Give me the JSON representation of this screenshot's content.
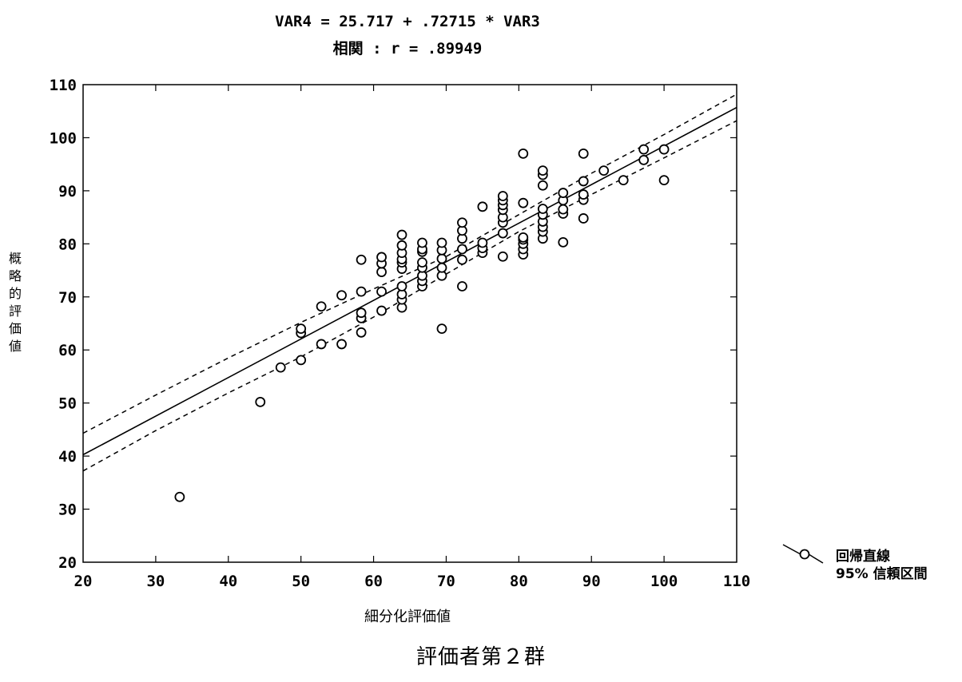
{
  "chart_data": {
    "type": "scatter",
    "title": "VAR4 = 25.717 + .72715 * VAR3",
    "subtitle": "相関 : r = .89949",
    "xlabel": "細分化評価値",
    "ylabel": "概略的評価値",
    "xlim": [
      20,
      110
    ],
    "ylim": [
      20,
      110
    ],
    "xticks": [
      "20",
      "30",
      "40",
      "50",
      "60",
      "70",
      "80",
      "90",
      "100",
      "110"
    ],
    "yticks": [
      "20",
      "30",
      "40",
      "50",
      "60",
      "70",
      "80",
      "90",
      "100",
      "110"
    ],
    "regression": {
      "intercept": 25.717,
      "slope": 0.72715
    },
    "confidence_upper": [
      [
        20,
        44.3
      ],
      [
        30,
        51.5
      ],
      [
        40,
        58.5
      ],
      [
        50,
        65.2
      ],
      [
        60,
        71.5
      ],
      [
        70,
        77.6
      ],
      [
        80,
        85.5
      ],
      [
        90,
        93.3
      ],
      [
        100,
        100.6
      ],
      [
        110,
        108.2
      ]
    ],
    "confidence_lower": [
      [
        20,
        37.2
      ],
      [
        30,
        44.8
      ],
      [
        40,
        51.9
      ],
      [
        50,
        58.7
      ],
      [
        60,
        66.2
      ],
      [
        70,
        74.3
      ],
      [
        80,
        82.3
      ],
      [
        90,
        89.3
      ],
      [
        100,
        96.2
      ],
      [
        110,
        103.2
      ]
    ],
    "points": [
      [
        33.3,
        32.3
      ],
      [
        44.4,
        50.2
      ],
      [
        47.2,
        56.7
      ],
      [
        50,
        58.1
      ],
      [
        50,
        63.2
      ],
      [
        50,
        64
      ],
      [
        52.8,
        61.1
      ],
      [
        52.8,
        68.2
      ],
      [
        55.6,
        61.1
      ],
      [
        55.6,
        70.3
      ],
      [
        58.3,
        63.3
      ],
      [
        58.3,
        66
      ],
      [
        58.3,
        67
      ],
      [
        58.3,
        71
      ],
      [
        58.3,
        77
      ],
      [
        61.1,
        67.4
      ],
      [
        61.1,
        71
      ],
      [
        61.1,
        74.7
      ],
      [
        61.1,
        76.3
      ],
      [
        61.1,
        77.5
      ],
      [
        63.9,
        68
      ],
      [
        63.9,
        69.5
      ],
      [
        63.9,
        70.5
      ],
      [
        63.9,
        72
      ],
      [
        63.9,
        75.3
      ],
      [
        63.9,
        76.5
      ],
      [
        63.9,
        77.1
      ],
      [
        63.9,
        78.3
      ],
      [
        63.9,
        79.7
      ],
      [
        63.9,
        81.7
      ],
      [
        66.7,
        72
      ],
      [
        66.7,
        73
      ],
      [
        66.7,
        74
      ],
      [
        66.7,
        75.5
      ],
      [
        66.7,
        76.5
      ],
      [
        66.7,
        78.5
      ],
      [
        66.7,
        79
      ],
      [
        66.7,
        80.2
      ],
      [
        69.4,
        64
      ],
      [
        69.4,
        74
      ],
      [
        69.4,
        75.5
      ],
      [
        69.4,
        77.2
      ],
      [
        69.4,
        78.8
      ],
      [
        69.4,
        80.2
      ],
      [
        72.2,
        72
      ],
      [
        72.2,
        77
      ],
      [
        72.2,
        79
      ],
      [
        72.2,
        81
      ],
      [
        72.2,
        82.5
      ],
      [
        72.2,
        84
      ],
      [
        75,
        78.3
      ],
      [
        75,
        79.2
      ],
      [
        75,
        80.2
      ],
      [
        75,
        87
      ],
      [
        77.8,
        77.6
      ],
      [
        77.8,
        82
      ],
      [
        77.8,
        84
      ],
      [
        77.8,
        85
      ],
      [
        77.8,
        86.4
      ],
      [
        77.8,
        87.3
      ],
      [
        77.8,
        88.2
      ],
      [
        77.8,
        89
      ],
      [
        80.6,
        78
      ],
      [
        80.6,
        79
      ],
      [
        80.6,
        80
      ],
      [
        80.6,
        80.8
      ],
      [
        80.6,
        81.2
      ],
      [
        80.6,
        87.7
      ],
      [
        80.6,
        97
      ],
      [
        83.3,
        81
      ],
      [
        83.3,
        82.3
      ],
      [
        83.3,
        83.2
      ],
      [
        83.3,
        84.2
      ],
      [
        83.3,
        85.5
      ],
      [
        83.3,
        86.6
      ],
      [
        83.3,
        91
      ],
      [
        83.3,
        93
      ],
      [
        83.3,
        93.8
      ],
      [
        86.1,
        80.3
      ],
      [
        86.1,
        85.7
      ],
      [
        86.1,
        86.5
      ],
      [
        86.1,
        88.2
      ],
      [
        86.1,
        89.6
      ],
      [
        88.9,
        84.8
      ],
      [
        88.9,
        88.3
      ],
      [
        88.9,
        89.3
      ],
      [
        88.9,
        91.8
      ],
      [
        88.9,
        97
      ],
      [
        91.7,
        93.8
      ],
      [
        94.4,
        92
      ],
      [
        97.2,
        95.8
      ],
      [
        97.2,
        97.8
      ],
      [
        100,
        92
      ],
      [
        100,
        97.8
      ]
    ],
    "legend": {
      "placement": "right",
      "entries": [
        "回帰直線",
        "95% 信頼区間"
      ]
    }
  },
  "caption": "評価者第２群",
  "colors": {
    "ink": "#000000",
    "background": "#ffffff"
  }
}
